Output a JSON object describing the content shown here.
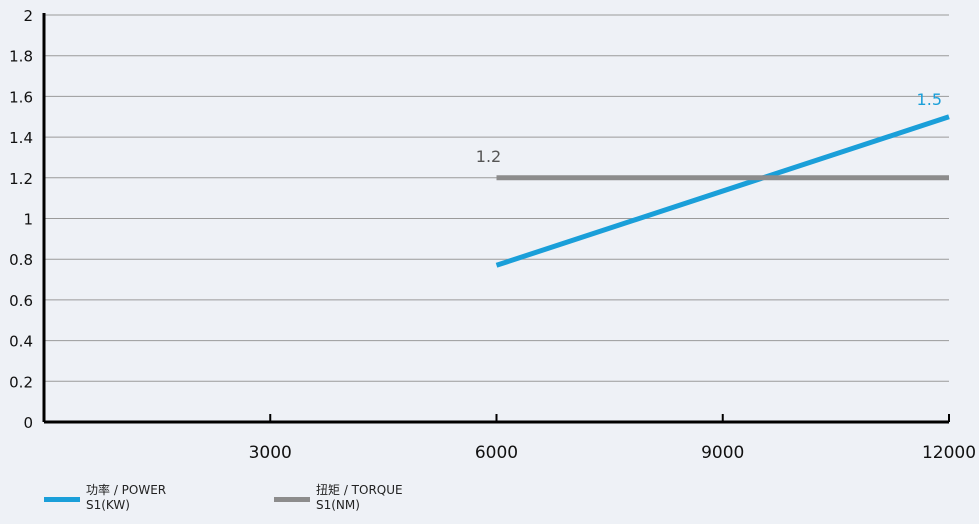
{
  "chart_data": {
    "type": "line",
    "title": "",
    "xlabel": "",
    "ylabel": "",
    "xlim": [
      0,
      12000
    ],
    "ylim": [
      0,
      2
    ],
    "x_ticks": [
      "3000",
      "6000",
      "9000",
      "12000"
    ],
    "y_ticks": [
      "0",
      "0.2",
      "0.4",
      "0.6",
      "0.8",
      "1",
      "1.2",
      "1.4",
      "1.6",
      "1.8",
      "2"
    ],
    "grid": "horizontal",
    "legend_position": "bottom-left",
    "series": [
      {
        "name_cn": "功率 / POWER",
        "name_en": "S1(KW)",
        "color": "#1a9fd9",
        "x": [
          6000,
          12000
        ],
        "y": [
          0.77,
          1.5
        ],
        "end_label": "1.5"
      },
      {
        "name_cn": "扭矩 /  TORQUE",
        "name_en": "S1(NM)",
        "color": "#8c8c8c",
        "x": [
          6000,
          12000
        ],
        "y": [
          1.2,
          1.2
        ],
        "start_label": "1.2"
      }
    ]
  }
}
